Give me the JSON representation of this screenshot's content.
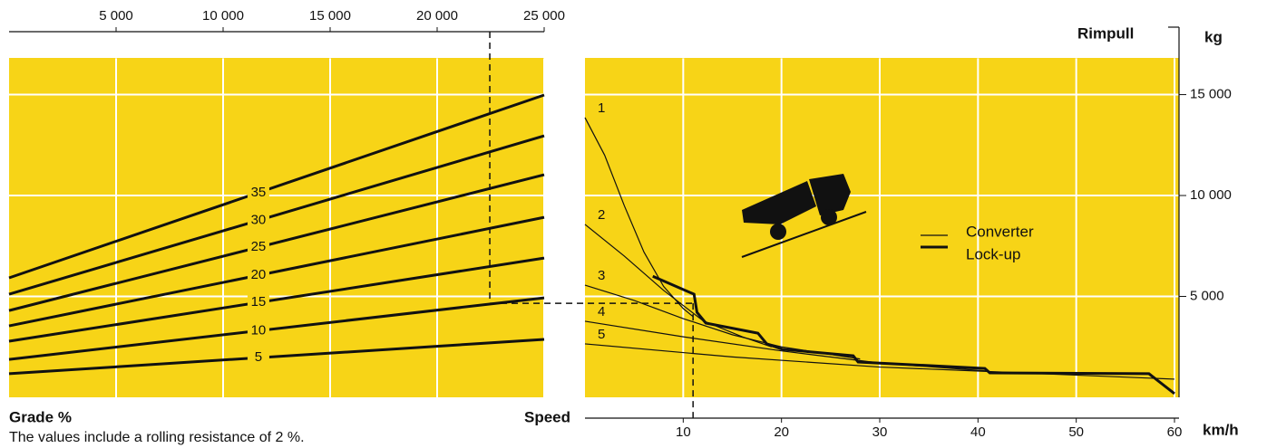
{
  "chart_data": [
    {
      "type": "line",
      "xlabel": "Grade %",
      "note": "The values include a rolling resistance of 2 %.",
      "xlim": [
        0,
        25000
      ],
      "xticks": [
        {
          "value": 5000,
          "label": "5 000"
        },
        {
          "value": 10000,
          "label": "10 000"
        },
        {
          "value": 15000,
          "label": "15 000"
        },
        {
          "value": 20000,
          "label": "20 000"
        },
        {
          "value": 25000,
          "label": "25 000"
        }
      ],
      "ylim": [
        0,
        16800
      ],
      "color": "#111111",
      "series": [
        {
          "name": "35",
          "x": [
            0,
            25000
          ],
          "values": [
            5920,
            14980
          ]
        },
        {
          "name": "30",
          "x": [
            0,
            25000
          ],
          "values": [
            5110,
            12960
          ]
        },
        {
          "name": "25",
          "x": [
            0,
            25000
          ],
          "values": [
            4300,
            11030
          ]
        },
        {
          "name": "20",
          "x": [
            0,
            25000
          ],
          "values": [
            3540,
            8920
          ]
        },
        {
          "name": "15",
          "x": [
            0,
            25000
          ],
          "values": [
            2780,
            6900
          ]
        },
        {
          "name": "10",
          "x": [
            0,
            25000
          ],
          "values": [
            1880,
            4930
          ]
        },
        {
          "name": "5",
          "x": [
            0,
            25000
          ],
          "values": [
            1170,
            2870
          ]
        }
      ]
    },
    {
      "type": "line",
      "title": "Rimpull",
      "ylabel": "kg",
      "xlabel": "Speed",
      "xunit": "km/h",
      "xlim": [
        0,
        60
      ],
      "xticks": [
        10,
        20,
        30,
        40,
        50,
        60
      ],
      "ylim": [
        0,
        16800
      ],
      "yticks": [
        {
          "value": 5000,
          "label": "5 000"
        },
        {
          "value": 10000,
          "label": "10 000"
        },
        {
          "value": 15000,
          "label": "15 000"
        }
      ],
      "color": "#111111",
      "converter_label": "Converter",
      "series": [
        {
          "name": "1",
          "width": 1.2,
          "x": [
            0,
            2,
            4,
            6,
            8,
            10,
            11
          ],
          "values": [
            13860,
            12000,
            9500,
            7200,
            5500,
            4400,
            4000
          ]
        },
        {
          "name": "2",
          "width": 1.2,
          "x": [
            0,
            4,
            8,
            12,
            16,
            19
          ],
          "values": [
            8570,
            7000,
            5300,
            3800,
            3000,
            2500
          ]
        },
        {
          "name": "3",
          "width": 1.2,
          "x": [
            0,
            5,
            10,
            15,
            20,
            28
          ],
          "values": [
            5560,
            4800,
            3900,
            3100,
            2500,
            1900
          ]
        },
        {
          "name": "4",
          "width": 1.2,
          "x": [
            0,
            10,
            20,
            30,
            41
          ],
          "values": [
            3770,
            3000,
            2300,
            1700,
            1300
          ]
        },
        {
          "name": "5",
          "width": 1.2,
          "x": [
            0,
            15,
            30,
            45,
            60
          ],
          "values": [
            2650,
            2000,
            1500,
            1200,
            900
          ]
        },
        {
          "name": "Lock-up",
          "width": 3,
          "x": [
            6.9,
            11.1,
            11.4,
            12.3,
            17.6,
            18.5,
            20.1,
            27.3,
            27.8,
            40.7,
            41.2,
            57.4,
            60
          ],
          "values": [
            6000,
            5110,
            4210,
            3680,
            3180,
            2650,
            2380,
            2060,
            1750,
            1430,
            1210,
            1170,
            180
          ]
        }
      ],
      "example": {
        "weight": 22460,
        "rimpull": 4660,
        "speed": 11
      }
    }
  ]
}
